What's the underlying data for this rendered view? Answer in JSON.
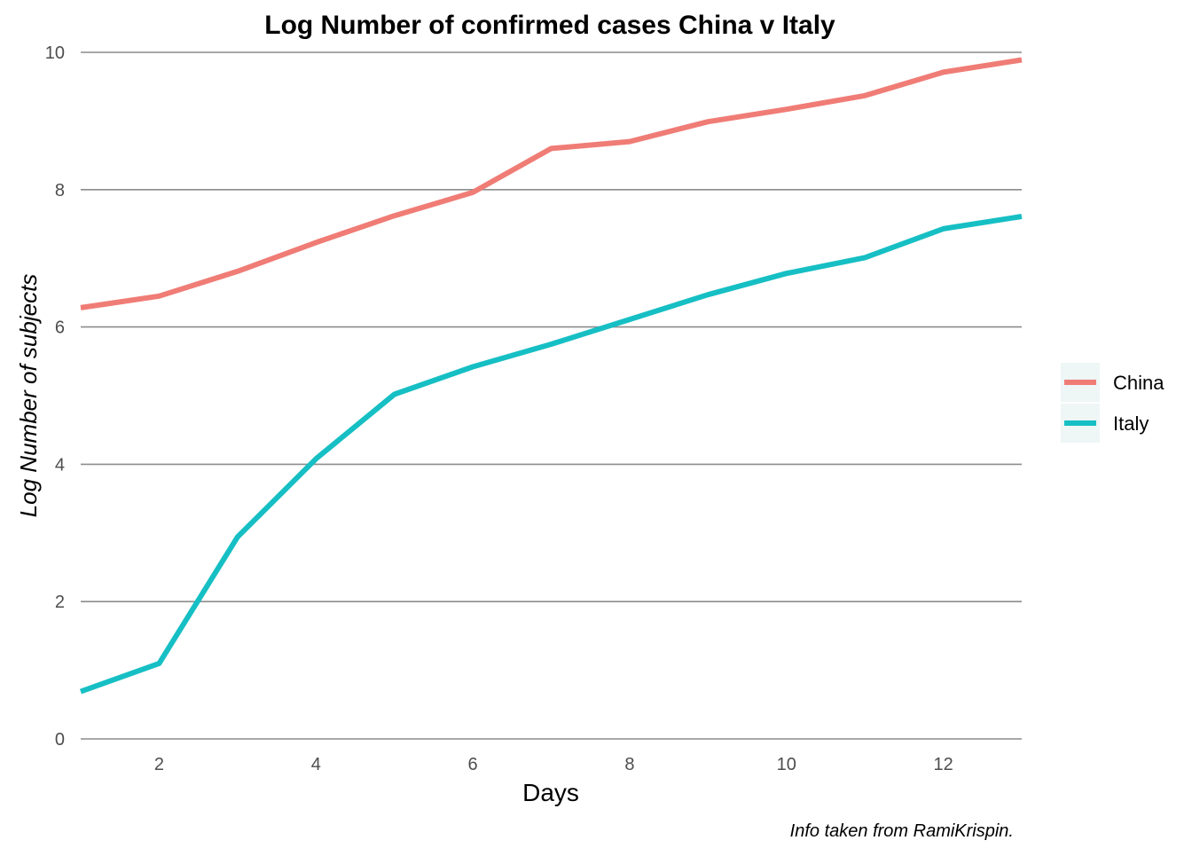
{
  "chart_data": {
    "type": "line",
    "title": "Log Number of confirmed cases China v Italy",
    "xlabel": "Days",
    "ylabel": "Log Number of subjects",
    "caption": "Info taken from RamiKrispin.",
    "x": [
      1,
      2,
      3,
      4,
      5,
      6,
      7,
      8,
      9,
      10,
      11,
      12,
      13
    ],
    "xlim": [
      1,
      13
    ],
    "ylim": [
      0,
      10
    ],
    "xticks": [
      "2",
      "4",
      "6",
      "8",
      "10",
      "12"
    ],
    "yticks": [
      "0",
      "2",
      "4",
      "6",
      "8",
      "10"
    ],
    "grid": "horizontal",
    "legend_position": "right",
    "series": [
      {
        "name": "China",
        "color": "#F07C76",
        "values": [
          6.28,
          6.45,
          6.81,
          7.23,
          7.62,
          7.96,
          8.6,
          8.7,
          8.99,
          9.17,
          9.37,
          9.71,
          9.89
        ]
      },
      {
        "name": "Italy",
        "color": "#16BFC4",
        "values": [
          0.69,
          1.1,
          2.94,
          4.08,
          5.02,
          5.42,
          5.75,
          6.11,
          6.47,
          6.78,
          7.01,
          7.43,
          7.61
        ]
      }
    ]
  }
}
